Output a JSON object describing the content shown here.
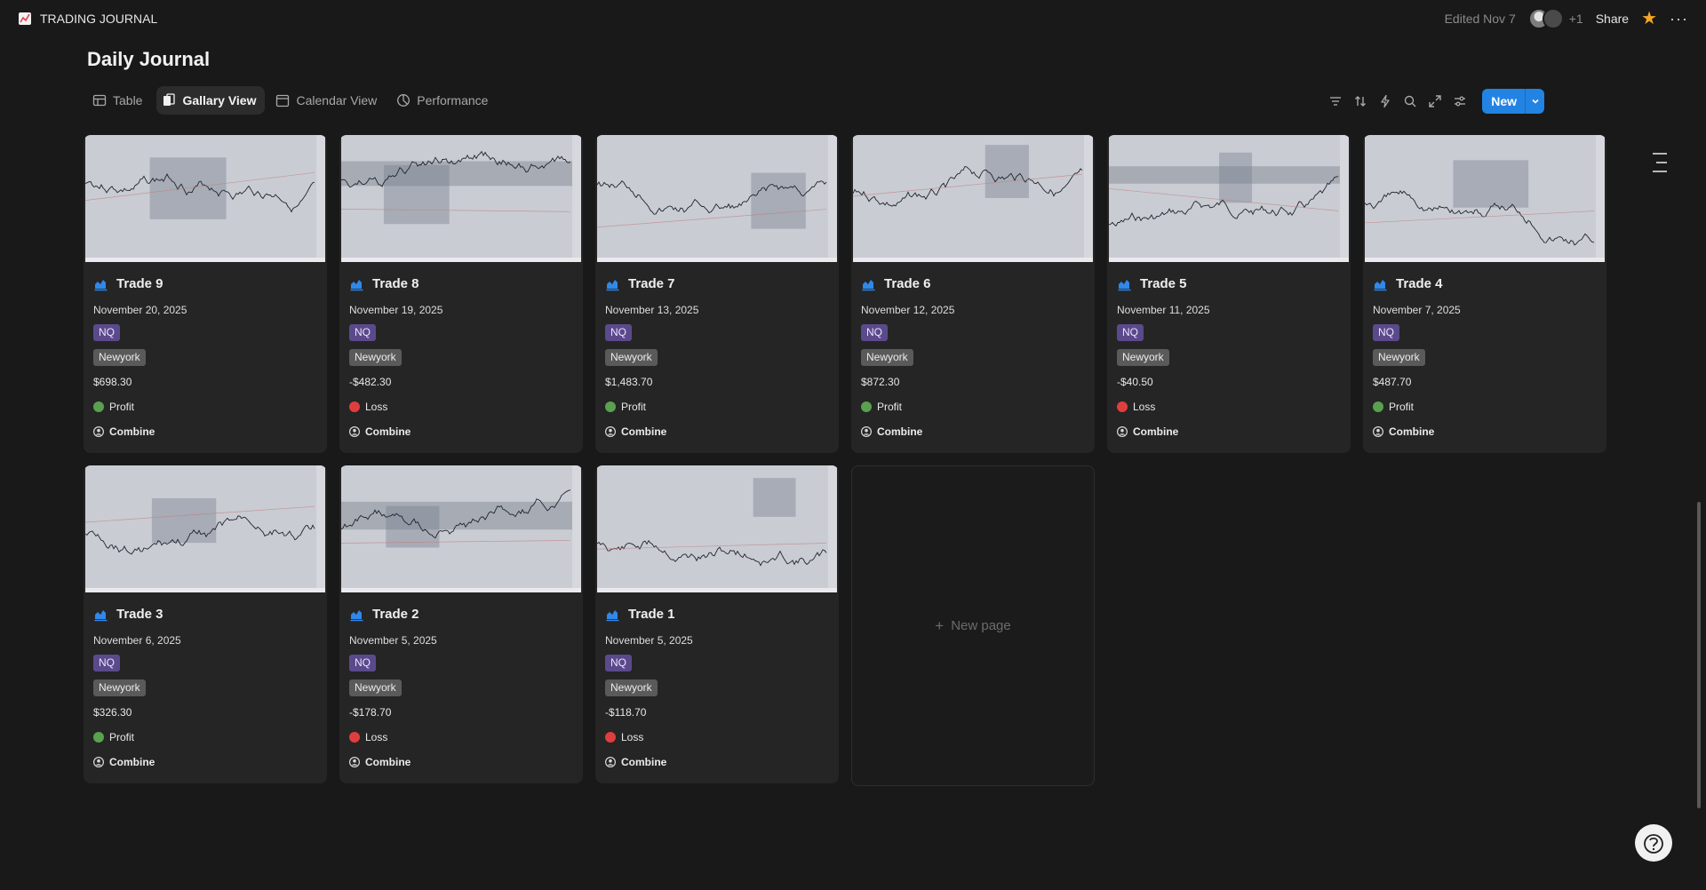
{
  "topbar": {
    "workspace_title": "TRADING JOURNAL",
    "edited": "Edited Nov 7",
    "extra_users": "+1",
    "share_label": "Share"
  },
  "page": {
    "title": "Daily Journal"
  },
  "tabs": [
    {
      "label": "Table",
      "icon": "table-icon",
      "active": false
    },
    {
      "label": "Gallary View",
      "icon": "gallery-icon",
      "active": true
    },
    {
      "label": "Calendar View",
      "icon": "calendar-icon",
      "active": false
    },
    {
      "label": "Performance",
      "icon": "chart-pie-icon",
      "active": false
    }
  ],
  "toolbar": {
    "icons": [
      "filter-icon",
      "sort-icon",
      "automation-icon",
      "search-icon",
      "expand-icon",
      "settings-icon"
    ],
    "new_label": "New"
  },
  "colors": {
    "accent": "#2383e2",
    "profit": "#59a14f",
    "loss": "#e03e3e",
    "tag_nq": "#5b4a8b",
    "tag_session": "#5a5a5a"
  },
  "cards": [
    {
      "title": "Trade 9",
      "date": "November 20, 2025",
      "instrument": "NQ",
      "session": "Newyork",
      "pnl": "$698.30",
      "result": "Profit",
      "account": "Combine"
    },
    {
      "title": "Trade 8",
      "date": "November 19, 2025",
      "instrument": "NQ",
      "session": "Newyork",
      "pnl": "-$482.30",
      "result": "Loss",
      "account": "Combine"
    },
    {
      "title": "Trade 7",
      "date": "November 13, 2025",
      "instrument": "NQ",
      "session": "Newyork",
      "pnl": "$1,483.70",
      "result": "Profit",
      "account": "Combine"
    },
    {
      "title": "Trade 6",
      "date": "November 12, 2025",
      "instrument": "NQ",
      "session": "Newyork",
      "pnl": "$872.30",
      "result": "Profit",
      "account": "Combine"
    },
    {
      "title": "Trade 5",
      "date": "November 11, 2025",
      "instrument": "NQ",
      "session": "Newyork",
      "pnl": "-$40.50",
      "result": "Loss",
      "account": "Combine"
    },
    {
      "title": "Trade 4",
      "date": "November 7, 2025",
      "instrument": "NQ",
      "session": "Newyork",
      "pnl": "$487.70",
      "result": "Profit",
      "account": "Combine"
    },
    {
      "title": "Trade 3",
      "date": "November 6, 2025",
      "instrument": "NQ",
      "session": "Newyork",
      "pnl": "$326.30",
      "result": "Profit",
      "account": "Combine"
    },
    {
      "title": "Trade 2",
      "date": "November 5, 2025",
      "instrument": "NQ",
      "session": "Newyork",
      "pnl": "-$178.70",
      "result": "Loss",
      "account": "Combine"
    },
    {
      "title": "Trade 1",
      "date": "November 5, 2025",
      "instrument": "NQ",
      "session": "Newyork",
      "pnl": "-$118.70",
      "result": "Loss",
      "account": "Combine"
    }
  ],
  "new_page_label": "New page"
}
